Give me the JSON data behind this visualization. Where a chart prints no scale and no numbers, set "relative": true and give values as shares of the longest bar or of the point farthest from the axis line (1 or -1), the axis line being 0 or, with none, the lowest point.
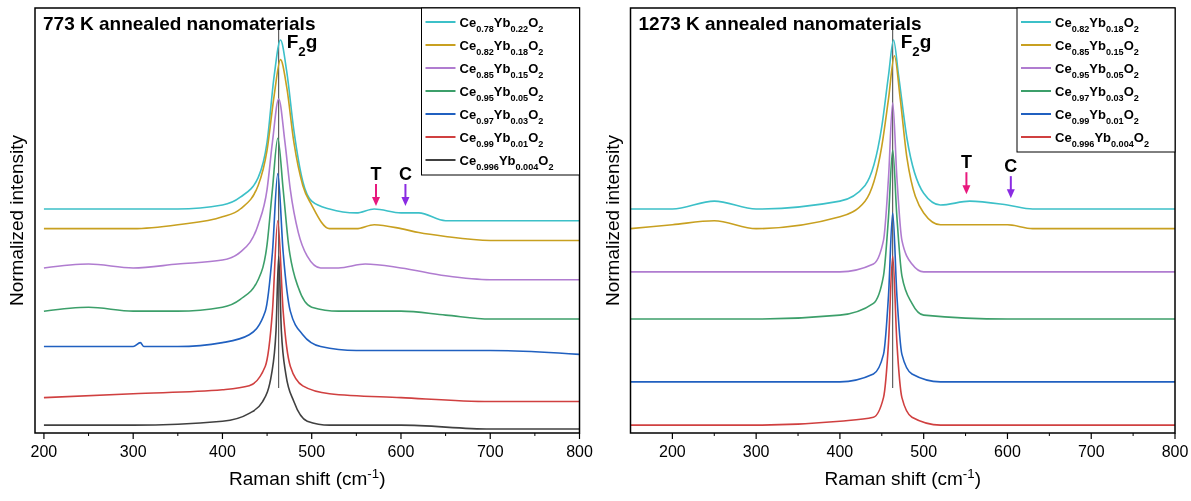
{
  "chart_data": [
    {
      "type": "line",
      "title": "773 K annealed nanomaterials",
      "xlabel": "Raman shift (cm$^{-1}$)",
      "ylabel": "Normalized intensity",
      "relative": true,
      "xlim": [
        190,
        800
      ],
      "xticks": [
        200,
        300,
        400,
        500,
        600,
        700,
        800
      ],
      "legend": "top right",
      "line_style": "solid",
      "marker": "none",
      "grid": false,
      "ref_lines": [
        {
          "axis": "x",
          "value": 463,
          "label": "F$_{2}$g",
          "color": "#404040"
        }
      ],
      "annotations": [
        {
          "text": "T",
          "x": 572,
          "y": 0.57
        },
        {
          "text": "C",
          "x": 605,
          "y": 0.57
        }
      ],
      "series": [
        {
          "name": "Ce$_{0.78}$Yb$_{0.22}$O$_{2}$",
          "color": "#3cc0c8",
          "x": [
            200,
            250,
            300,
            350,
            400,
            420,
            440,
            450,
            458,
            465,
            472,
            480,
            490,
            500,
            520,
            550,
            570,
            600,
            620,
            650,
            700,
            750,
            800
          ],
          "values": [
            0.57,
            0.57,
            0.57,
            0.57,
            0.58,
            0.6,
            0.65,
            0.74,
            0.91,
            1.0,
            0.92,
            0.77,
            0.64,
            0.59,
            0.57,
            0.56,
            0.57,
            0.56,
            0.56,
            0.54,
            0.54,
            0.54,
            0.54
          ]
        },
        {
          "name": "Ce$_{0.82}$Yb$_{0.18}$O$_{2}$",
          "color": "#c8a020",
          "x": [
            200,
            250,
            300,
            350,
            400,
            420,
            440,
            450,
            458,
            465,
            472,
            480,
            490,
            500,
            520,
            550,
            570,
            600,
            620,
            650,
            700,
            750,
            800
          ],
          "values": [
            0.52,
            0.52,
            0.52,
            0.53,
            0.55,
            0.57,
            0.63,
            0.72,
            0.86,
            0.95,
            0.88,
            0.74,
            0.63,
            0.58,
            0.52,
            0.52,
            0.53,
            0.52,
            0.51,
            0.5,
            0.49,
            0.49,
            0.49
          ]
        },
        {
          "name": "Ce$_{0.85}$Yb$_{0.15}$O$_{2}$",
          "color": "#b07cd0",
          "x": [
            200,
            250,
            300,
            350,
            400,
            420,
            440,
            450,
            456,
            463,
            470,
            476,
            485,
            495,
            510,
            530,
            560,
            600,
            650,
            700,
            800
          ],
          "values": [
            0.42,
            0.43,
            0.42,
            0.43,
            0.44,
            0.46,
            0.53,
            0.62,
            0.74,
            0.85,
            0.74,
            0.62,
            0.51,
            0.45,
            0.42,
            0.42,
            0.43,
            0.42,
            0.4,
            0.39,
            0.39
          ]
        },
        {
          "name": "Ce$_{0.95}$Yb$_{0.05}$O$_{2}$",
          "color": "#3c9f6a",
          "x": [
            200,
            250,
            300,
            350,
            400,
            420,
            440,
            450,
            456,
            462,
            468,
            474,
            485,
            500,
            530,
            600,
            650,
            700,
            800
          ],
          "values": [
            0.31,
            0.32,
            0.31,
            0.31,
            0.32,
            0.34,
            0.39,
            0.48,
            0.62,
            0.75,
            0.62,
            0.48,
            0.37,
            0.32,
            0.31,
            0.31,
            0.3,
            0.29,
            0.29
          ]
        },
        {
          "name": "Ce$_{0.97}$Yb$_{0.03}$O$_{2}$",
          "color": "#2060c0",
          "x": [
            200,
            250,
            300,
            308,
            312,
            350,
            400,
            430,
            448,
            456,
            462,
            468,
            476,
            490,
            510,
            550,
            600,
            700,
            800
          ],
          "values": [
            0.22,
            0.22,
            0.22,
            0.23,
            0.22,
            0.22,
            0.23,
            0.25,
            0.31,
            0.46,
            0.66,
            0.46,
            0.31,
            0.25,
            0.22,
            0.21,
            0.21,
            0.21,
            0.2
          ]
        },
        {
          "name": "Ce$_{0.99}$Yb$_{0.01}$O$_{2}$",
          "color": "#d04040",
          "x": [
            200,
            300,
            400,
            430,
            448,
            456,
            462,
            468,
            476,
            490,
            520,
            600,
            700,
            800
          ],
          "values": [
            0.09,
            0.1,
            0.11,
            0.12,
            0.17,
            0.31,
            0.54,
            0.31,
            0.17,
            0.12,
            0.1,
            0.09,
            0.08,
            0.08
          ]
        },
        {
          "name": "Ce$_{0.996}$Yb$_{0.004}$O$_{2}$",
          "color": "#404040",
          "x": [
            200,
            300,
            400,
            430,
            445,
            455,
            460,
            463,
            466,
            471,
            480,
            495,
            520,
            600,
            700,
            800
          ],
          "values": [
            0.02,
            0.02,
            0.03,
            0.05,
            0.08,
            0.15,
            0.26,
            0.45,
            0.26,
            0.15,
            0.08,
            0.03,
            0.02,
            0.02,
            0.01,
            0.01
          ]
        }
      ]
    },
    {
      "type": "line",
      "title": "1273 K annealed nanomaterials",
      "xlabel": "Raman shift (cm$^{-1}$)",
      "ylabel": "Normalized intensity",
      "relative": true,
      "xlim": [
        150,
        800
      ],
      "xticks": [
        200,
        300,
        400,
        500,
        600,
        700,
        800
      ],
      "legend": "top right",
      "line_style": "solid",
      "marker": "none",
      "grid": false,
      "ref_lines": [
        {
          "axis": "x",
          "value": 463,
          "label": "F$_{2}$g",
          "color": "#404040"
        }
      ],
      "annotations": [
        {
          "text": "T",
          "x": 551,
          "y": 0.6
        },
        {
          "text": "C",
          "x": 604,
          "y": 0.59
        }
      ],
      "series": [
        {
          "name": "Ce$_{0.82}$Yb$_{0.18}$O$_{2}$",
          "color": "#3cc0c8",
          "x": [
            150,
            200,
            250,
            300,
            400,
            430,
            450,
            458,
            464,
            470,
            480,
            500,
            520,
            555,
            600,
            630,
            700,
            800
          ],
          "values": [
            0.57,
            0.57,
            0.59,
            0.57,
            0.59,
            0.63,
            0.78,
            0.91,
            1.0,
            0.91,
            0.75,
            0.61,
            0.58,
            0.59,
            0.58,
            0.57,
            0.57,
            0.57
          ]
        },
        {
          "name": "Ce$_{0.85}$Yb$_{0.15}$O$_{2}$",
          "color": "#c8a020",
          "x": [
            150,
            200,
            250,
            300,
            400,
            430,
            450,
            458,
            465,
            472,
            480,
            500,
            520,
            555,
            600,
            630,
            700,
            800
          ],
          "values": [
            0.52,
            0.53,
            0.54,
            0.52,
            0.55,
            0.59,
            0.73,
            0.85,
            0.96,
            0.85,
            0.7,
            0.56,
            0.53,
            0.53,
            0.53,
            0.52,
            0.52,
            0.52
          ]
        },
        {
          "name": "Ce$_{0.95}$Yb$_{0.05}$O$_{2}$",
          "color": "#b07cd0",
          "x": [
            150,
            300,
            400,
            440,
            452,
            458,
            463,
            468,
            474,
            486,
            500,
            600,
            800
          ],
          "values": [
            0.41,
            0.41,
            0.41,
            0.43,
            0.49,
            0.65,
            0.84,
            0.65,
            0.49,
            0.43,
            0.41,
            0.41,
            0.41
          ]
        },
        {
          "name": "Ce$_{0.97}$Yb$_{0.03}$O$_{2}$",
          "color": "#3c9f6a",
          "x": [
            150,
            300,
            400,
            440,
            452,
            458,
            463,
            468,
            474,
            486,
            500,
            600,
            800
          ],
          "values": [
            0.29,
            0.29,
            0.3,
            0.33,
            0.4,
            0.55,
            0.72,
            0.55,
            0.4,
            0.33,
            0.3,
            0.29,
            0.29
          ]
        },
        {
          "name": "Ce$_{0.99}$Yb$_{0.01}$O$_{2}$",
          "color": "#2060c0",
          "x": [
            150,
            300,
            400,
            440,
            452,
            458,
            463,
            468,
            474,
            486,
            520,
            800
          ],
          "values": [
            0.13,
            0.13,
            0.13,
            0.15,
            0.2,
            0.35,
            0.56,
            0.35,
            0.2,
            0.15,
            0.13,
            0.13
          ]
        },
        {
          "name": "Ce$_{0.996}$Yb$_{0.004}$O$_{2}$",
          "color": "#d04040",
          "x": [
            150,
            300,
            400,
            440,
            452,
            458,
            463,
            468,
            474,
            486,
            520,
            800
          ],
          "values": [
            0.02,
            0.02,
            0.03,
            0.04,
            0.09,
            0.23,
            0.45,
            0.23,
            0.09,
            0.04,
            0.02,
            0.02
          ]
        }
      ]
    }
  ]
}
